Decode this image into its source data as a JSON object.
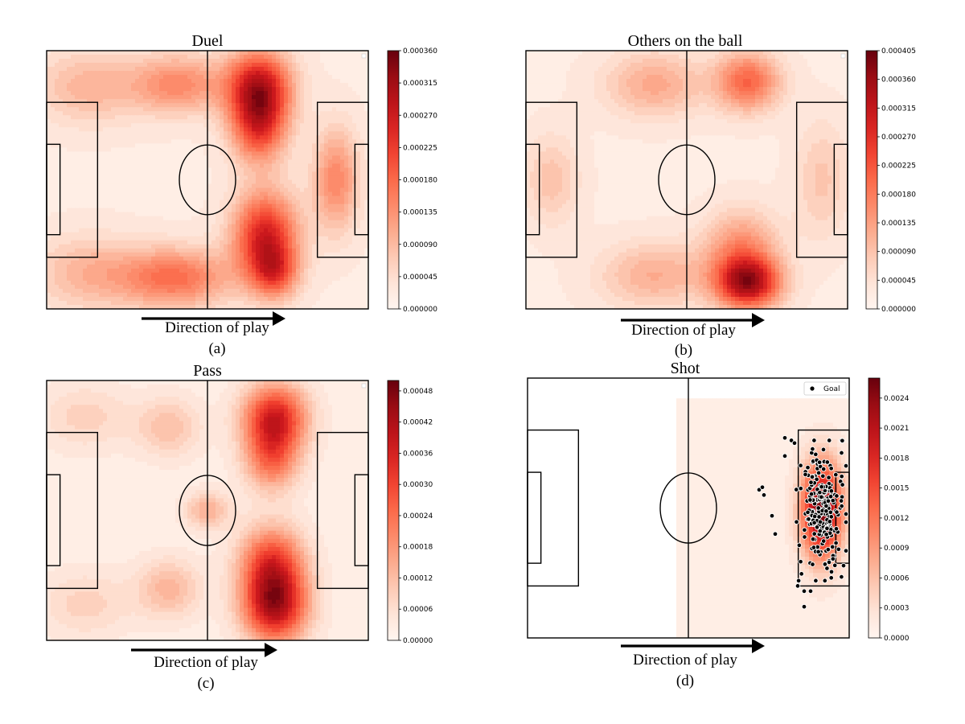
{
  "chart_data": [
    {
      "type": "heatmap",
      "title": "Duel",
      "xlabel": "Direction of play",
      "caption": "(a)",
      "colormap": "Reds",
      "colorbar": {
        "min": 0,
        "max": 0.00036,
        "ticks": [
          "0.000000",
          "0.000045",
          "0.000090",
          "0.000135",
          "0.000180",
          "0.000225",
          "0.000270",
          "0.000315",
          "0.000360"
        ]
      },
      "blobs": [
        {
          "x": 0.66,
          "y": 0.14,
          "sx": 0.07,
          "sy": 0.1,
          "w": 1.0
        },
        {
          "x": 0.66,
          "y": 0.3,
          "sx": 0.06,
          "sy": 0.1,
          "w": 0.72
        },
        {
          "x": 0.68,
          "y": 0.72,
          "sx": 0.07,
          "sy": 0.12,
          "w": 0.95
        },
        {
          "x": 0.71,
          "y": 0.86,
          "sx": 0.05,
          "sy": 0.07,
          "w": 0.55
        },
        {
          "x": 0.4,
          "y": 0.88,
          "sx": 0.12,
          "sy": 0.08,
          "w": 0.6
        },
        {
          "x": 0.41,
          "y": 0.13,
          "sx": 0.1,
          "sy": 0.08,
          "w": 0.48
        },
        {
          "x": 0.9,
          "y": 0.5,
          "sx": 0.05,
          "sy": 0.14,
          "w": 0.5
        },
        {
          "x": 0.13,
          "y": 0.14,
          "sx": 0.12,
          "sy": 0.1,
          "w": 0.3
        },
        {
          "x": 0.13,
          "y": 0.86,
          "sx": 0.12,
          "sy": 0.1,
          "w": 0.3
        }
      ],
      "base": 0.08
    },
    {
      "type": "heatmap",
      "title": "Others on the ball",
      "xlabel": "Direction of play",
      "caption": "(b)",
      "colormap": "Reds",
      "colorbar": {
        "min": 0,
        "max": 0.000405,
        "ticks": [
          "0.000000",
          "0.000045",
          "0.000090",
          "0.000135",
          "0.000180",
          "0.000225",
          "0.000270",
          "0.000315",
          "0.000360",
          "0.000405"
        ]
      },
      "blobs": [
        {
          "x": 0.69,
          "y": 0.9,
          "sx": 0.07,
          "sy": 0.07,
          "w": 1.0
        },
        {
          "x": 0.67,
          "y": 0.76,
          "sx": 0.08,
          "sy": 0.1,
          "w": 0.4
        },
        {
          "x": 0.69,
          "y": 0.12,
          "sx": 0.07,
          "sy": 0.08,
          "w": 0.58
        },
        {
          "x": 0.4,
          "y": 0.13,
          "sx": 0.11,
          "sy": 0.09,
          "w": 0.32
        },
        {
          "x": 0.4,
          "y": 0.87,
          "sx": 0.12,
          "sy": 0.09,
          "w": 0.3
        },
        {
          "x": 0.08,
          "y": 0.5,
          "sx": 0.06,
          "sy": 0.12,
          "w": 0.22
        },
        {
          "x": 0.92,
          "y": 0.5,
          "sx": 0.06,
          "sy": 0.16,
          "w": 0.2
        }
      ],
      "base": 0.07
    },
    {
      "type": "heatmap",
      "title": "Pass",
      "xlabel": "Direction of play",
      "caption": "(c)",
      "colormap": "Reds",
      "colorbar": {
        "min": 0,
        "max": 0.0005,
        "ticks": [
          "0.00000",
          "0.00006",
          "0.00012",
          "0.00018",
          "0.00024",
          "0.00030",
          "0.00036",
          "0.00042",
          "0.00048"
        ]
      },
      "blobs": [
        {
          "x": 0.71,
          "y": 0.87,
          "sx": 0.07,
          "sy": 0.1,
          "w": 1.0
        },
        {
          "x": 0.7,
          "y": 0.7,
          "sx": 0.07,
          "sy": 0.1,
          "w": 0.7
        },
        {
          "x": 0.71,
          "y": 0.14,
          "sx": 0.07,
          "sy": 0.09,
          "w": 0.86
        },
        {
          "x": 0.7,
          "y": 0.3,
          "sx": 0.06,
          "sy": 0.09,
          "w": 0.55
        },
        {
          "x": 0.5,
          "y": 0.5,
          "sx": 0.05,
          "sy": 0.05,
          "w": 0.32
        },
        {
          "x": 0.38,
          "y": 0.8,
          "sx": 0.07,
          "sy": 0.08,
          "w": 0.3
        },
        {
          "x": 0.38,
          "y": 0.18,
          "sx": 0.07,
          "sy": 0.08,
          "w": 0.26
        },
        {
          "x": 0.12,
          "y": 0.14,
          "sx": 0.1,
          "sy": 0.09,
          "w": 0.18
        },
        {
          "x": 0.12,
          "y": 0.86,
          "sx": 0.1,
          "sy": 0.09,
          "w": 0.18
        }
      ],
      "base": 0.05
    },
    {
      "type": "scatter",
      "title": "Shot",
      "xlabel": "Direction of play",
      "caption": "(d)",
      "colormap": "Reds",
      "legend": {
        "entries": [
          "Goal"
        ],
        "placement": "top-right"
      },
      "colorbar": {
        "min": 0,
        "max": 0.0026,
        "ticks": [
          "0.0000",
          "0.0003",
          "0.0006",
          "0.0009",
          "0.0012",
          "0.0015",
          "0.0018",
          "0.0021",
          "0.0024"
        ]
      },
      "density": {
        "x": 0.915,
        "y": 0.51,
        "sx": 0.045,
        "sy": 0.13,
        "w": 1.0
      },
      "density_region_x": [
        0.465,
        1.0
      ],
      "density_region_y": [
        0.08,
        1.0
      ],
      "base": 0.04,
      "goals": {
        "count": 240,
        "center": [
          0.915,
          0.51
        ],
        "spread": [
          0.035,
          0.115
        ],
        "extra_points": [
          [
            0.72,
            0.43
          ],
          [
            0.73,
            0.42
          ],
          [
            0.735,
            0.45
          ],
          [
            0.76,
            0.53
          ],
          [
            0.77,
            0.6
          ],
          [
            0.8,
            0.23
          ],
          [
            0.8,
            0.3
          ],
          [
            0.83,
            0.25
          ],
          [
            0.86,
            0.82
          ],
          [
            0.84,
            0.8
          ],
          [
            0.88,
            0.82
          ],
          [
            0.86,
            0.88
          ]
        ]
      }
    }
  ]
}
